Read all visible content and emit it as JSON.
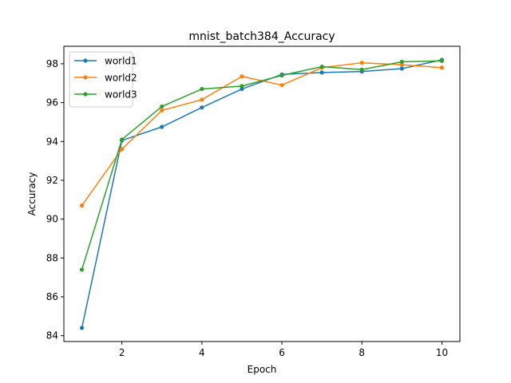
{
  "chart_data": {
    "type": "line",
    "title": "mnist_batch384_Accuracy",
    "xlabel": "Epoch",
    "ylabel": "Accuracy",
    "xlim": [
      0.55,
      10.45
    ],
    "ylim": [
      83.7,
      98.9
    ],
    "xticks": [
      2,
      4,
      6,
      8,
      10
    ],
    "yticks": [
      84,
      86,
      88,
      90,
      92,
      94,
      96,
      98
    ],
    "x": [
      1,
      2,
      3,
      4,
      5,
      6,
      7,
      8,
      9,
      10
    ],
    "legend_position": "upper-left",
    "grid": false,
    "series": [
      {
        "name": "world1",
        "color": "#1f77b4",
        "values": [
          84.4,
          94.05,
          94.75,
          95.75,
          96.7,
          97.45,
          97.55,
          97.6,
          97.75,
          98.2
        ]
      },
      {
        "name": "world2",
        "color": "#ff7f0e",
        "values": [
          90.7,
          93.6,
          95.6,
          96.15,
          97.35,
          96.9,
          97.8,
          98.05,
          97.95,
          97.8
        ]
      },
      {
        "name": "world3",
        "color": "#2ca02c",
        "values": [
          87.4,
          94.1,
          95.8,
          96.7,
          96.85,
          97.4,
          97.85,
          97.7,
          98.1,
          98.15
        ]
      }
    ]
  }
}
